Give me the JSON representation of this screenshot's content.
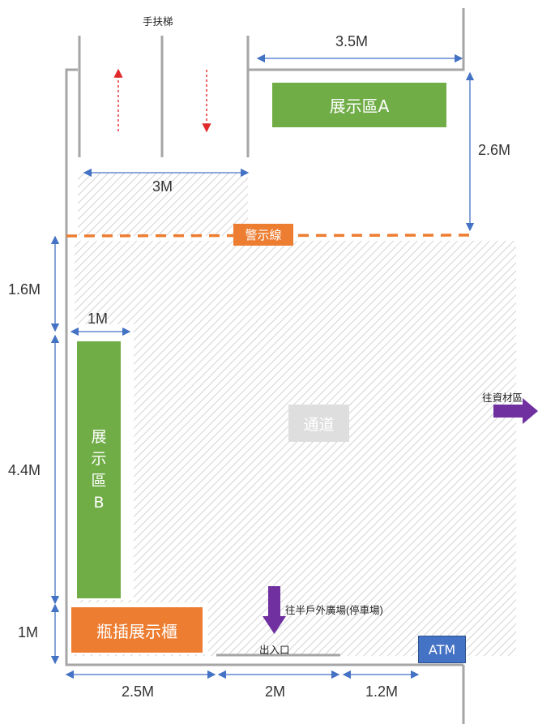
{
  "escalator": {
    "label": "手扶梯"
  },
  "zone_a": {
    "label": "展示區A",
    "color": "#70AD47"
  },
  "zone_b": {
    "line1": "展",
    "line2": "示",
    "line3": "區",
    "line4": "B",
    "color": "#70AD47"
  },
  "vase_cabinet": {
    "label": "瓶插展示櫃",
    "color": "#ED7D31"
  },
  "warning_line": {
    "label": "警示線",
    "color": "#ED7D31"
  },
  "aisle": {
    "label": "通道"
  },
  "atm": {
    "label": "ATM",
    "color": "#4472C4"
  },
  "entrance": {
    "label": "出入口"
  },
  "directions": {
    "to_materials": "往資材區",
    "to_outdoor_plaza": "往半戶外廣場(停車場)",
    "arrow_color": "#7030A0"
  },
  "dimensions": {
    "top_width": "3.5M",
    "right_depth": "2.6M",
    "escalator_width": "3M",
    "left_upper": "1.6M",
    "zone_b_width": "1M",
    "left_middle": "4.4M",
    "left_lower": "1M",
    "bottom_left": "2.5M",
    "bottom_middle": "2M",
    "bottom_right": "1.2M"
  }
}
